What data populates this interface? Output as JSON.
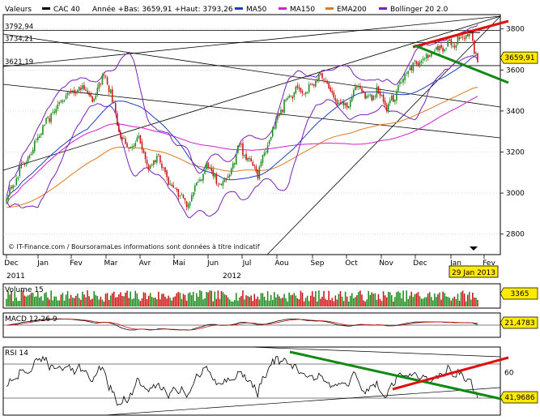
{
  "chart_data": [
    {
      "type": "candlestick",
      "legend": {
        "label": "Valeurs",
        "symbol": "CAC 40",
        "info": "Année +Bas: 3659,91 +Haut: 3793,26",
        "entries": [
          {
            "name": "MA50",
            "color": "#1f3fbf"
          },
          {
            "name": "MA150",
            "color": "#d020d0"
          },
          {
            "name": "EMA200",
            "color": "#e07820"
          },
          {
            "name": "Bollinger 20 2.0",
            "color": "#7a22b8"
          }
        ]
      },
      "watermark": "© IT-Finance.com / BoursoramaLes informations sont données à titre indicatif",
      "ylim": [
        2700,
        3870
      ],
      "yticks": [
        "3800",
        "3600",
        "3400",
        "3200",
        "3000",
        "2800"
      ],
      "ytick_values": [
        3800,
        3600,
        3400,
        3200,
        3000,
        2800
      ],
      "hlines": [
        {
          "label": "3792,94",
          "value": 3792.94
        },
        {
          "label": "3734,21",
          "value": 3734.21
        },
        {
          "label": "3621,19",
          "value": 3621.19
        }
      ],
      "last_value": {
        "label": "3659,91",
        "value": 3659.91
      },
      "months": [
        "Dec",
        "Jan",
        "Fev",
        "Mar",
        "Avr",
        "Mai",
        "Jun",
        "Jul",
        "Aou",
        "Sep",
        "Oct",
        "Nov",
        "Dec",
        "Jan",
        "Fev"
      ],
      "years": [
        "2011",
        "2012"
      ],
      "date_badge": "29 Jan 2013",
      "anchors": [
        {
          "i": 0,
          "v": 2980
        },
        {
          "i": 6,
          "v": 3080
        },
        {
          "i": 14,
          "v": 3180
        },
        {
          "i": 22,
          "v": 3320
        },
        {
          "i": 30,
          "v": 3420
        },
        {
          "i": 38,
          "v": 3480
        },
        {
          "i": 46,
          "v": 3520
        },
        {
          "i": 52,
          "v": 3460
        },
        {
          "i": 56,
          "v": 3520
        },
        {
          "i": 60,
          "v": 3580
        },
        {
          "i": 64,
          "v": 3450
        },
        {
          "i": 68,
          "v": 3300
        },
        {
          "i": 74,
          "v": 3220
        },
        {
          "i": 80,
          "v": 3260
        },
        {
          "i": 86,
          "v": 3120
        },
        {
          "i": 92,
          "v": 3180
        },
        {
          "i": 98,
          "v": 3050
        },
        {
          "i": 104,
          "v": 3000
        },
        {
          "i": 110,
          "v": 2950
        },
        {
          "i": 116,
          "v": 3060
        },
        {
          "i": 122,
          "v": 3130
        },
        {
          "i": 128,
          "v": 3040
        },
        {
          "i": 134,
          "v": 3060
        },
        {
          "i": 140,
          "v": 3230
        },
        {
          "i": 146,
          "v": 3170
        },
        {
          "i": 152,
          "v": 3100
        },
        {
          "i": 158,
          "v": 3220
        },
        {
          "i": 164,
          "v": 3380
        },
        {
          "i": 170,
          "v": 3460
        },
        {
          "i": 176,
          "v": 3520
        },
        {
          "i": 182,
          "v": 3490
        },
        {
          "i": 188,
          "v": 3560
        },
        {
          "i": 194,
          "v": 3540
        },
        {
          "i": 200,
          "v": 3440
        },
        {
          "i": 206,
          "v": 3420
        },
        {
          "i": 212,
          "v": 3520
        },
        {
          "i": 218,
          "v": 3460
        },
        {
          "i": 224,
          "v": 3500
        },
        {
          "i": 230,
          "v": 3420
        },
        {
          "i": 234,
          "v": 3460
        },
        {
          "i": 240,
          "v": 3560
        },
        {
          "i": 246,
          "v": 3620
        },
        {
          "i": 252,
          "v": 3640
        },
        {
          "i": 258,
          "v": 3700
        },
        {
          "i": 264,
          "v": 3710
        },
        {
          "i": 270,
          "v": 3730
        },
        {
          "i": 276,
          "v": 3760
        },
        {
          "i": 280,
          "v": 3780
        },
        {
          "i": 283,
          "v": 3700
        },
        {
          "i": 285,
          "v": 3660
        }
      ]
    },
    {
      "type": "bar",
      "title": "Volume 15",
      "last_value": "3365",
      "ylim": [
        0,
        1
      ]
    },
    {
      "type": "line",
      "title": "MACD 12-26 9",
      "last_value": "21,4783",
      "ylim": [
        -100,
        100
      ]
    },
    {
      "type": "line",
      "title": "RSI 14",
      "yticks": [
        "60"
      ],
      "ytick_values": [
        60
      ],
      "last_value": "41,9686",
      "ylim": [
        10,
        90
      ]
    }
  ],
  "colors": {
    "up": "#1a8a1a",
    "down": "#cc1111",
    "trend_red": "#dd1111",
    "trend_green": "#118811",
    "badge": "#ffea00"
  }
}
